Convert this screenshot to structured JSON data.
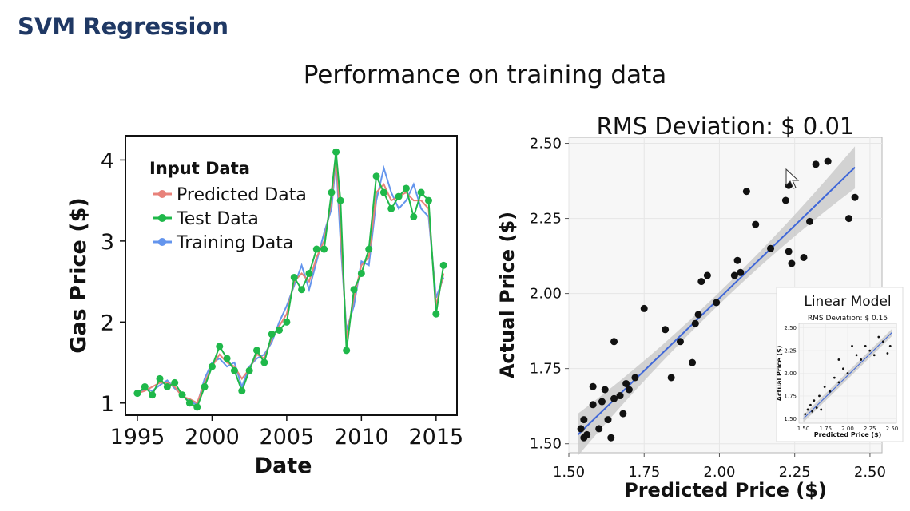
{
  "slide": {
    "title": "SVM Regression",
    "subtitle": "Performance on training data"
  },
  "colors": {
    "title": "#1f3864",
    "predicted": "#e8827a",
    "test": "#1fb84a",
    "training": "#6495ed",
    "fit_line": "#3f67d8",
    "confidence_band": "#c8c8c8",
    "panel_bg": "#ebebeb"
  },
  "chart_data": [
    {
      "type": "line",
      "title": "",
      "xlabel": "Date",
      "ylabel": "Gas Price ($)",
      "xlim": [
        1994.2,
        2016.4
      ],
      "ylim": [
        0.85,
        4.3
      ],
      "xticks": [
        1995,
        2000,
        2005,
        2010,
        2015
      ],
      "xtick_labels": [
        "1995",
        "2000",
        "2005",
        "2010",
        "2015"
      ],
      "yticks": [
        1,
        2,
        3,
        4
      ],
      "ytick_labels": [
        "1",
        "2",
        "3",
        "4"
      ],
      "legend": {
        "title": "Input Data",
        "placement": "top-left",
        "entries": [
          "Predicted Data",
          "Test Data",
          "Training Data"
        ]
      },
      "series": [
        {
          "name": "Predicted Data",
          "x": [
            1995.0,
            1995.5,
            1996.0,
            1996.5,
            1997.0,
            1997.5,
            1998.0,
            1998.5,
            1999.0,
            1999.5,
            2000.0,
            2000.5,
            2001.0,
            2001.5,
            2002.0,
            2002.5,
            2003.0,
            2003.5,
            2004.0,
            2004.5,
            2005.0,
            2005.5,
            2006.0,
            2006.5,
            2007.0,
            2007.5,
            2008.0,
            2008.3,
            2008.6,
            2009.0,
            2009.5,
            2010.0,
            2010.5,
            2011.0,
            2011.5,
            2012.0,
            2012.5,
            2013.0,
            2013.5,
            2014.0,
            2014.5,
            2015.0,
            2015.5
          ],
          "y": [
            1.12,
            1.15,
            1.2,
            1.25,
            1.25,
            1.2,
            1.08,
            1.05,
            1.0,
            1.25,
            1.45,
            1.6,
            1.5,
            1.45,
            1.3,
            1.42,
            1.6,
            1.55,
            1.8,
            1.95,
            2.1,
            2.5,
            2.6,
            2.5,
            2.8,
            3.0,
            3.5,
            4.05,
            3.2,
            1.8,
            2.3,
            2.7,
            2.8,
            3.6,
            3.7,
            3.5,
            3.55,
            3.6,
            3.5,
            3.5,
            3.4,
            2.2,
            2.6
          ]
        },
        {
          "name": "Test Data",
          "x": [
            1995.0,
            1995.5,
            1996.0,
            1996.5,
            1997.0,
            1997.5,
            1998.0,
            1998.5,
            1999.0,
            1999.5,
            2000.0,
            2000.5,
            2001.0,
            2001.5,
            2002.0,
            2002.5,
            2003.0,
            2003.5,
            2004.0,
            2004.5,
            2005.0,
            2005.5,
            2006.0,
            2006.5,
            2007.0,
            2007.5,
            2008.0,
            2008.3,
            2008.6,
            2009.0,
            2009.5,
            2010.0,
            2010.5,
            2011.0,
            2011.5,
            2012.0,
            2012.5,
            2013.0,
            2013.5,
            2014.0,
            2014.5,
            2015.0,
            2015.5
          ],
          "y": [
            1.12,
            1.2,
            1.1,
            1.3,
            1.2,
            1.25,
            1.1,
            1.0,
            0.95,
            1.2,
            1.45,
            1.7,
            1.55,
            1.4,
            1.15,
            1.4,
            1.65,
            1.5,
            1.85,
            1.9,
            2.0,
            2.55,
            2.4,
            2.6,
            2.9,
            2.9,
            3.6,
            4.1,
            3.5,
            1.65,
            2.4,
            2.6,
            2.9,
            3.8,
            3.6,
            3.4,
            3.55,
            3.65,
            3.3,
            3.6,
            3.5,
            2.1,
            2.7
          ]
        },
        {
          "name": "Training Data",
          "x": [
            1995.0,
            1995.5,
            1996.0,
            1996.5,
            1997.0,
            1997.5,
            1998.0,
            1998.5,
            1999.0,
            1999.5,
            2000.0,
            2000.5,
            2001.0,
            2001.5,
            2002.0,
            2002.5,
            2003.0,
            2003.5,
            2004.0,
            2004.5,
            2005.0,
            2005.5,
            2006.0,
            2006.5,
            2007.0,
            2007.5,
            2008.0,
            2008.3,
            2008.6,
            2009.0,
            2009.5,
            2010.0,
            2010.5,
            2011.0,
            2011.5,
            2012.0,
            2012.5,
            2013.0,
            2013.5,
            2014.0,
            2014.5,
            2015.0,
            2015.5
          ],
          "y": [
            1.1,
            1.18,
            1.15,
            1.22,
            1.28,
            1.18,
            1.1,
            1.02,
            0.98,
            1.3,
            1.5,
            1.55,
            1.45,
            1.5,
            1.2,
            1.45,
            1.55,
            1.6,
            1.75,
            2.0,
            2.2,
            2.45,
            2.7,
            2.4,
            2.75,
            3.1,
            3.4,
            4.0,
            3.0,
            1.9,
            2.2,
            2.75,
            2.7,
            3.5,
            3.9,
            3.6,
            3.4,
            3.5,
            3.7,
            3.4,
            3.3,
            2.3,
            2.55
          ]
        }
      ]
    },
    {
      "type": "scatter",
      "title": "RMS Deviation: $ 0.01",
      "xlabel": "Predicted Price ($)",
      "ylabel": "Actual Price ($)",
      "xlim": [
        1.5,
        2.54
      ],
      "ylim": [
        1.47,
        2.52
      ],
      "xticks": [
        1.5,
        1.75,
        2.0,
        2.25,
        2.5
      ],
      "xtick_labels": [
        "1.50",
        "1.75",
        "2.00",
        "2.25",
        "2.50"
      ],
      "yticks": [
        1.5,
        1.75,
        2.0,
        2.25,
        2.5
      ],
      "ytick_labels": [
        "1.50",
        "1.75",
        "2.00",
        "2.25",
        "2.50"
      ],
      "grid": true,
      "fit_line": {
        "x": [
          1.53,
          2.45
        ],
        "y": [
          1.53,
          2.42
        ]
      },
      "points": {
        "x": [
          1.54,
          1.55,
          1.55,
          1.56,
          1.58,
          1.58,
          1.6,
          1.61,
          1.62,
          1.63,
          1.64,
          1.65,
          1.65,
          1.67,
          1.68,
          1.69,
          1.7,
          1.72,
          1.75,
          1.82,
          1.84,
          1.87,
          1.91,
          1.92,
          1.93,
          1.94,
          1.96,
          1.99,
          2.05,
          2.06,
          2.07,
          2.09,
          2.12,
          2.17,
          2.22,
          2.23,
          2.23,
          2.24,
          2.28,
          2.3,
          2.32,
          2.36,
          2.43,
          2.45
        ],
        "y": [
          1.55,
          1.52,
          1.58,
          1.53,
          1.63,
          1.69,
          1.55,
          1.64,
          1.68,
          1.58,
          1.52,
          1.65,
          1.84,
          1.66,
          1.6,
          1.7,
          1.68,
          1.72,
          1.95,
          1.88,
          1.72,
          1.84,
          1.77,
          1.9,
          1.93,
          2.04,
          2.06,
          1.97,
          2.06,
          2.11,
          2.07,
          2.34,
          2.23,
          2.15,
          2.31,
          2.36,
          2.14,
          2.1,
          2.12,
          2.24,
          2.43,
          2.44,
          2.25,
          2.32
        ]
      }
    },
    {
      "type": "scatter",
      "title": "RMS Deviation: $ 0.15",
      "inset_label": "Linear Model",
      "xlabel": "Predicted Price ($)",
      "ylabel": "Actual Price ($)",
      "xlim": [
        1.45,
        2.55
      ],
      "ylim": [
        1.45,
        2.55
      ],
      "xticks": [
        1.5,
        1.75,
        2.0,
        2.25,
        2.5
      ],
      "xtick_labels": [
        "1.50",
        "1.75",
        "2.00",
        "2.25",
        "2.50"
      ],
      "yticks": [
        1.5,
        1.75,
        2.0,
        2.25,
        2.5
      ],
      "ytick_labels": [
        "1.50",
        "1.75",
        "2.00",
        "2.25",
        "2.50"
      ],
      "fit_line": {
        "x": [
          1.5,
          2.5
        ],
        "y": [
          1.5,
          2.45
        ]
      },
      "points": {
        "x": [
          1.52,
          1.55,
          1.58,
          1.6,
          1.62,
          1.65,
          1.68,
          1.7,
          1.74,
          1.8,
          1.85,
          1.9,
          1.95,
          2.0,
          2.05,
          2.1,
          2.15,
          2.2,
          2.25,
          2.3,
          2.35,
          2.4,
          2.45,
          2.48,
          1.9
        ],
        "y": [
          1.55,
          1.6,
          1.65,
          1.58,
          1.7,
          1.62,
          1.75,
          1.6,
          1.85,
          1.8,
          1.95,
          1.9,
          2.05,
          2.0,
          2.3,
          2.2,
          2.15,
          2.3,
          2.25,
          2.2,
          2.4,
          2.35,
          2.22,
          2.3,
          2.15
        ]
      }
    }
  ]
}
